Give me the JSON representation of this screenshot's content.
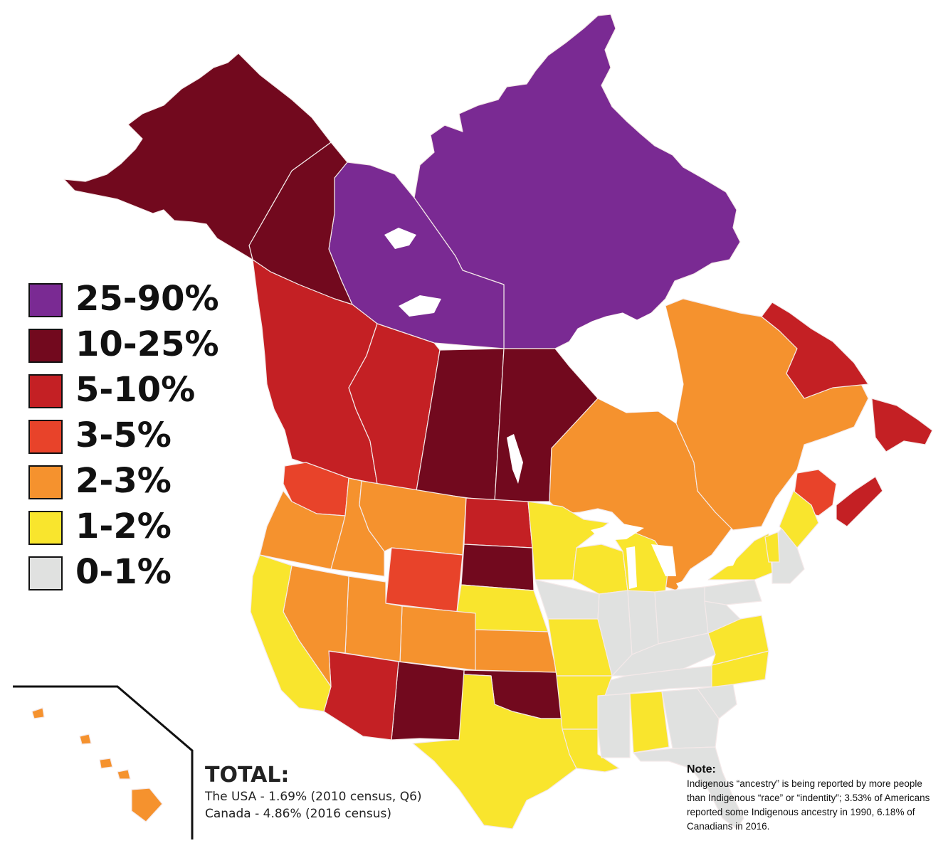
{
  "colors": {
    "c25_90": "#7a2a93",
    "c10_25": "#72091e",
    "c5_10": "#c42024",
    "c3_5": "#e8432a",
    "c2_3": "#f5922e",
    "c1_2": "#f9e52d",
    "c0_1": "#e0e1e0",
    "border": "#f4e9e9",
    "water": "#ffffff"
  },
  "legend": [
    {
      "label": "25-90%",
      "color": "#7a2a93"
    },
    {
      "label": "10-25%",
      "color": "#72091e"
    },
    {
      "label": "5-10%",
      "color": "#c42024"
    },
    {
      "label": "3-5%",
      "color": "#e8432a"
    },
    {
      "label": "2-3%",
      "color": "#f5922e"
    },
    {
      "label": "1-2%",
      "color": "#f9e52d"
    },
    {
      "label": "0-1%",
      "color": "#e0e1e0"
    }
  ],
  "total": {
    "title": "TOTAL:",
    "usa": "The USA - 1.69% (2010 census, Q6)",
    "canada": "Canada - 4.86% (2016 census)"
  },
  "note": {
    "title": "Note:",
    "text": "Indigenous “ancestry” is being reported by more people than Indigenous “race” or “indentity”; 3.53% of Americans reported some Indigenous ancestry in 1990, 6.18% of Canadians in 2016."
  },
  "regions": [
    {
      "name": "Nunavut",
      "category": "25-90%"
    },
    {
      "name": "Northwest Territories",
      "category": "25-90%"
    },
    {
      "name": "Yukon",
      "category": "10-25%"
    },
    {
      "name": "Alaska",
      "category": "10-25%"
    },
    {
      "name": "Saskatchewan",
      "category": "10-25%"
    },
    {
      "name": "Manitoba",
      "category": "10-25%"
    },
    {
      "name": "South Dakota",
      "category": "10-25%"
    },
    {
      "name": "New Mexico",
      "category": "10-25%"
    },
    {
      "name": "Oklahoma",
      "category": "10-25%"
    },
    {
      "name": "British Columbia",
      "category": "5-10%"
    },
    {
      "name": "Alberta",
      "category": "5-10%"
    },
    {
      "name": "North Dakota",
      "category": "5-10%"
    },
    {
      "name": "Arizona",
      "category": "5-10%"
    },
    {
      "name": "Newfoundland and Labrador",
      "category": "5-10%"
    },
    {
      "name": "Nova Scotia",
      "category": "5-10%"
    },
    {
      "name": "Washington",
      "category": "3-5%"
    },
    {
      "name": "Wyoming",
      "category": "3-5%"
    },
    {
      "name": "New Brunswick",
      "category": "3-5%"
    },
    {
      "name": "Ontario",
      "category": "2-3%"
    },
    {
      "name": "Quebec",
      "category": "2-3%"
    },
    {
      "name": "Oregon",
      "category": "2-3%"
    },
    {
      "name": "Idaho",
      "category": "2-3%"
    },
    {
      "name": "Montana",
      "category": "2-3%"
    },
    {
      "name": "Nevada",
      "category": "2-3%"
    },
    {
      "name": "Utah",
      "category": "2-3%"
    },
    {
      "name": "Colorado",
      "category": "2-3%"
    },
    {
      "name": "Kansas",
      "category": "2-3%"
    },
    {
      "name": "Hawaii",
      "category": "2-3%"
    },
    {
      "name": "California",
      "category": "1-2%"
    },
    {
      "name": "Nebraska",
      "category": "1-2%"
    },
    {
      "name": "Texas",
      "category": "1-2%"
    },
    {
      "name": "Minnesota",
      "category": "1-2%"
    },
    {
      "name": "Wisconsin",
      "category": "1-2%"
    },
    {
      "name": "Michigan",
      "category": "1-2%"
    },
    {
      "name": "Missouri",
      "category": "1-2%"
    },
    {
      "name": "Arkansas",
      "category": "1-2%"
    },
    {
      "name": "Louisiana",
      "category": "1-2%"
    },
    {
      "name": "Alabama",
      "category": "1-2%"
    },
    {
      "name": "North Carolina",
      "category": "1-2%"
    },
    {
      "name": "Virginia",
      "category": "1-2%"
    },
    {
      "name": "New York",
      "category": "1-2%"
    },
    {
      "name": "Maine",
      "category": "1-2%"
    },
    {
      "name": "Vermont",
      "category": "1-2%"
    },
    {
      "name": "Iowa",
      "category": "0-1%"
    },
    {
      "name": "Illinois",
      "category": "0-1%"
    },
    {
      "name": "Indiana",
      "category": "0-1%"
    },
    {
      "name": "Ohio",
      "category": "0-1%"
    },
    {
      "name": "Kentucky",
      "category": "0-1%"
    },
    {
      "name": "Tennessee",
      "category": "0-1%"
    },
    {
      "name": "Mississippi",
      "category": "0-1%"
    },
    {
      "name": "Georgia",
      "category": "0-1%"
    },
    {
      "name": "South Carolina",
      "category": "0-1%"
    },
    {
      "name": "Florida",
      "category": "0-1%"
    },
    {
      "name": "Pennsylvania",
      "category": "0-1%"
    },
    {
      "name": "West Virginia",
      "category": "0-1%"
    },
    {
      "name": "New England",
      "category": "0-1%"
    }
  ]
}
